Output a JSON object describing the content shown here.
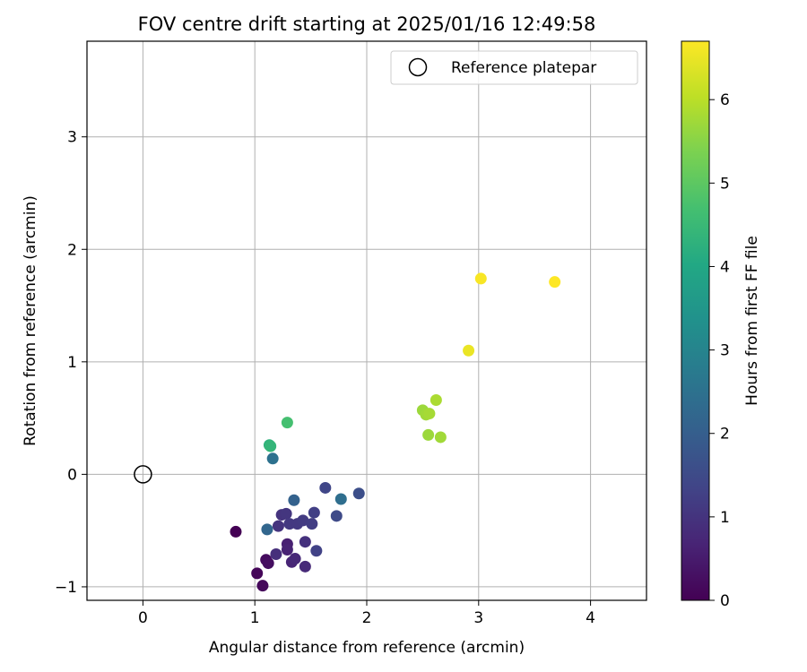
{
  "chart_data": {
    "type": "scatter",
    "title": "FOV centre drift starting at 2025/01/16 12:49:58",
    "xlabel": "Angular distance from reference (arcmin)",
    "ylabel": "Rotation from reference (arcmin)",
    "xlim": [
      -0.5,
      4.5
    ],
    "ylim": [
      -1.12,
      3.85
    ],
    "xticks": [
      0,
      1,
      2,
      3,
      4
    ],
    "yticks": [
      -1,
      0,
      1,
      2,
      3
    ],
    "grid": true,
    "legend": {
      "placement": "top-right",
      "entries": [
        "Reference platepar"
      ]
    },
    "reference_point": {
      "x": 0,
      "y": 0,
      "label": "Reference platepar",
      "marker": "open-circle"
    },
    "colorbar": {
      "label": "Hours from first FF file",
      "colormap": "viridis",
      "range": [
        0,
        6.7
      ],
      "ticks": [
        0,
        1,
        2,
        3,
        4,
        5,
        6
      ]
    },
    "points": [
      {
        "x": 0.83,
        "y": -0.51,
        "c": 0.0
      },
      {
        "x": 1.02,
        "y": -0.88,
        "c": 0.1
      },
      {
        "x": 1.07,
        "y": -0.99,
        "c": 0.15
      },
      {
        "x": 1.1,
        "y": -0.76,
        "c": 0.2
      },
      {
        "x": 1.12,
        "y": -0.79,
        "c": 0.25
      },
      {
        "x": 1.29,
        "y": -0.62,
        "c": 0.6
      },
      {
        "x": 1.29,
        "y": -0.67,
        "c": 0.65
      },
      {
        "x": 1.33,
        "y": -0.78,
        "c": 0.7
      },
      {
        "x": 1.36,
        "y": -0.75,
        "c": 0.75
      },
      {
        "x": 1.45,
        "y": -0.82,
        "c": 0.8
      },
      {
        "x": 1.19,
        "y": -0.71,
        "c": 0.9
      },
      {
        "x": 1.45,
        "y": -0.6,
        "c": 0.95
      },
      {
        "x": 1.21,
        "y": -0.46,
        "c": 1.0
      },
      {
        "x": 1.24,
        "y": -0.36,
        "c": 1.0
      },
      {
        "x": 1.28,
        "y": -0.35,
        "c": 1.05
      },
      {
        "x": 1.31,
        "y": -0.44,
        "c": 1.1
      },
      {
        "x": 1.38,
        "y": -0.44,
        "c": 1.1
      },
      {
        "x": 1.43,
        "y": -0.41,
        "c": 1.15
      },
      {
        "x": 1.51,
        "y": -0.44,
        "c": 1.2
      },
      {
        "x": 1.53,
        "y": -0.34,
        "c": 1.25
      },
      {
        "x": 1.55,
        "y": -0.68,
        "c": 1.3
      },
      {
        "x": 1.63,
        "y": -0.12,
        "c": 1.4
      },
      {
        "x": 1.73,
        "y": -0.37,
        "c": 1.5
      },
      {
        "x": 1.93,
        "y": -0.17,
        "c": 1.6
      },
      {
        "x": 1.35,
        "y": -0.23,
        "c": 2.1
      },
      {
        "x": 1.11,
        "y": -0.49,
        "c": 2.2
      },
      {
        "x": 1.77,
        "y": -0.22,
        "c": 2.4
      },
      {
        "x": 1.16,
        "y": 0.14,
        "c": 2.5
      },
      {
        "x": 1.13,
        "y": 0.26,
        "c": 4.3
      },
      {
        "x": 1.14,
        "y": 0.25,
        "c": 4.4
      },
      {
        "x": 1.29,
        "y": 0.46,
        "c": 4.7
      },
      {
        "x": 2.5,
        "y": 0.57,
        "c": 5.7
      },
      {
        "x": 2.53,
        "y": 0.53,
        "c": 5.75
      },
      {
        "x": 2.56,
        "y": 0.54,
        "c": 5.8
      },
      {
        "x": 2.62,
        "y": 0.66,
        "c": 5.85
      },
      {
        "x": 2.55,
        "y": 0.35,
        "c": 5.7
      },
      {
        "x": 2.66,
        "y": 0.33,
        "c": 5.75
      },
      {
        "x": 2.91,
        "y": 1.1,
        "c": 6.5
      },
      {
        "x": 3.02,
        "y": 1.74,
        "c": 6.65
      },
      {
        "x": 3.68,
        "y": 1.71,
        "c": 6.7
      }
    ]
  }
}
